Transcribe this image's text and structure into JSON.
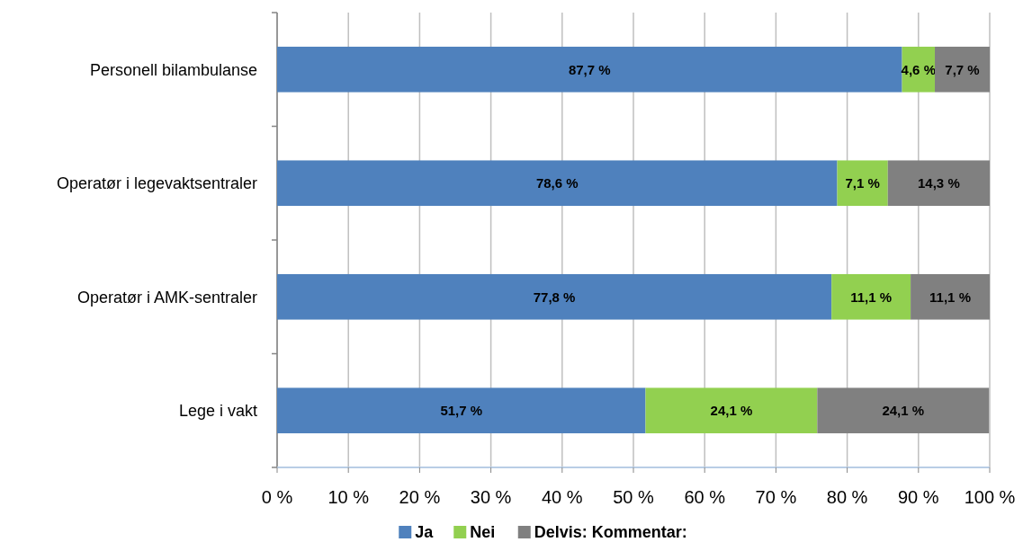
{
  "chart_data": {
    "type": "bar",
    "orientation": "horizontal",
    "stacked": true,
    "categories": [
      "Personell bilambulanse",
      "Operatør i legevaktsentraler",
      "Operatør i AMK-sentraler",
      "Lege i vakt"
    ],
    "series": [
      {
        "name": "Ja",
        "color": "#4f81bd",
        "values": [
          87.7,
          78.6,
          77.8,
          51.7
        ],
        "value_labels": [
          "87,7 %",
          "78,6 %",
          "77,8 %",
          "51,7 %"
        ]
      },
      {
        "name": "Nei",
        "color": "#92d050",
        "values": [
          4.6,
          7.1,
          11.1,
          24.1
        ],
        "value_labels": [
          "4,6 %",
          "7,1 %",
          "11,1 %",
          "24,1 %"
        ]
      },
      {
        "name": "Delvis: Kommentar:",
        "color": "#808080",
        "values": [
          7.7,
          14.3,
          11.1,
          24.1
        ],
        "value_labels": [
          "7,7 %",
          "14,3 %",
          "11,1 %",
          "24,1 %"
        ]
      }
    ],
    "xlim": [
      0,
      100
    ],
    "xticks": [
      {
        "value": 0,
        "label": "0 %"
      },
      {
        "value": 10,
        "label": "10 %"
      },
      {
        "value": 20,
        "label": "20 %"
      },
      {
        "value": 30,
        "label": "30 %"
      },
      {
        "value": 40,
        "label": "40 %"
      },
      {
        "value": 50,
        "label": "50 %"
      },
      {
        "value": 60,
        "label": "60 %"
      },
      {
        "value": 70,
        "label": "70 %"
      },
      {
        "value": 80,
        "label": "80 %"
      },
      {
        "value": 90,
        "label": "90 %"
      },
      {
        "value": 100,
        "label": "100 %"
      }
    ],
    "grid": "x",
    "legend": "bottom"
  }
}
